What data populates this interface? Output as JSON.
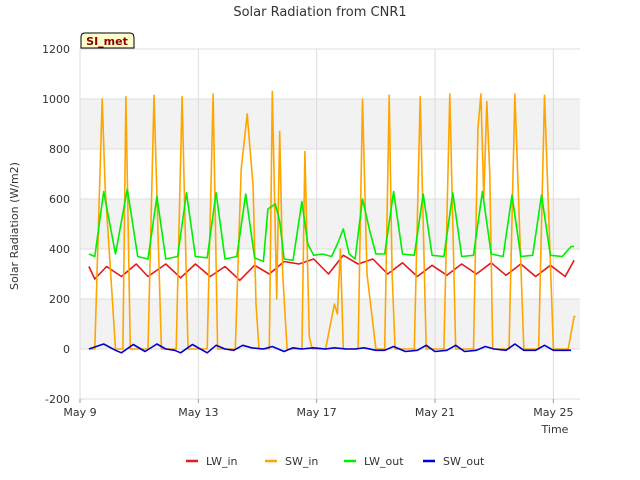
{
  "chart_data": {
    "type": "line",
    "title": "Solar Radiation from CNR1",
    "xlabel": "Time",
    "ylabel": "Solar Radiation (W/m2)",
    "badge": "SI_met",
    "x_range_days": [
      9.0,
      25.9
    ],
    "ylim": [
      -200,
      1200
    ],
    "y_ticks": [
      -200,
      0,
      200,
      400,
      600,
      800,
      1000,
      1200
    ],
    "x_ticks": [
      {
        "day": 9,
        "label": "May 9"
      },
      {
        "day": 13,
        "label": "May 13"
      },
      {
        "day": 17,
        "label": "May 17"
      },
      {
        "day": 21,
        "label": "May 21"
      },
      {
        "day": 25,
        "label": "May 25"
      }
    ],
    "grid": true,
    "legend_position": "bottom",
    "series": [
      {
        "name": "LW_in",
        "color": "#e31a1c",
        "x": [
          9.3,
          9.5,
          9.9,
          10.4,
          10.9,
          11.3,
          11.9,
          12.4,
          12.9,
          13.4,
          13.9,
          14.4,
          14.9,
          15.4,
          15.9,
          16.4,
          16.9,
          17.4,
          17.9,
          18.4,
          18.9,
          19.4,
          19.9,
          20.4,
          20.9,
          21.4,
          21.9,
          22.4,
          22.9,
          23.4,
          23.9,
          24.4,
          24.9,
          25.4,
          25.7
        ],
        "y": [
          330,
          280,
          330,
          290,
          340,
          290,
          340,
          285,
          340,
          290,
          330,
          275,
          335,
          300,
          350,
          340,
          360,
          300,
          375,
          340,
          360,
          300,
          345,
          290,
          335,
          295,
          340,
          300,
          345,
          295,
          340,
          290,
          335,
          290,
          355
        ]
      },
      {
        "name": "SW_in",
        "color": "#ffa500",
        "x": [
          9.3,
          9.5,
          9.75,
          9.85,
          10.2,
          10.45,
          10.55,
          10.7,
          10.95,
          11.3,
          11.5,
          11.75,
          11.9,
          12.25,
          12.45,
          12.65,
          12.9,
          13.3,
          13.5,
          13.65,
          13.9,
          14.25,
          14.45,
          14.65,
          14.85,
          14.95,
          15.05,
          15.2,
          15.4,
          15.5,
          15.65,
          15.75,
          15.85,
          16.0,
          16.3,
          16.5,
          16.6,
          16.75,
          16.85,
          17.3,
          17.6,
          17.7,
          17.8,
          17.9,
          18.1,
          18.4,
          18.55,
          18.7,
          19.0,
          19.3,
          19.45,
          19.55,
          19.65,
          20.0,
          20.3,
          20.5,
          20.7,
          21.0,
          21.3,
          21.5,
          21.7,
          22.0,
          22.3,
          22.45,
          22.55,
          22.65,
          22.75,
          22.85,
          22.95,
          23.3,
          23.5,
          23.7,
          24.0,
          24.3,
          24.5,
          24.7,
          25.0,
          25.3,
          25.5,
          25.7,
          25.75
        ],
        "y": [
          0,
          0,
          1000,
          650,
          0,
          0,
          1010,
          0,
          0,
          0,
          1015,
          0,
          0,
          0,
          1010,
          0,
          0,
          0,
          1020,
          0,
          0,
          0,
          720,
          940,
          650,
          180,
          0,
          0,
          0,
          1030,
          200,
          870,
          300,
          0,
          0,
          0,
          790,
          50,
          0,
          0,
          180,
          140,
          400,
          0,
          0,
          0,
          1000,
          300,
          0,
          0,
          1015,
          300,
          0,
          0,
          0,
          1010,
          0,
          0,
          0,
          1020,
          0,
          0,
          0,
          880,
          1020,
          600,
          990,
          700,
          0,
          0,
          0,
          1020,
          0,
          0,
          0,
          1015,
          0,
          0,
          0,
          130,
          130
        ]
      },
      {
        "name": "LW_out",
        "color": "#00ee00",
        "x": [
          9.3,
          9.5,
          9.8,
          10.2,
          10.6,
          10.95,
          11.3,
          11.6,
          11.9,
          12.3,
          12.6,
          12.9,
          13.3,
          13.6,
          13.9,
          14.3,
          14.6,
          14.9,
          15.2,
          15.35,
          15.6,
          15.75,
          15.9,
          16.2,
          16.5,
          16.7,
          16.9,
          17.2,
          17.5,
          17.7,
          17.9,
          18.1,
          18.3,
          18.55,
          18.8,
          19.0,
          19.3,
          19.6,
          19.9,
          20.3,
          20.6,
          20.9,
          21.3,
          21.6,
          21.9,
          22.3,
          22.6,
          22.9,
          23.3,
          23.6,
          23.9,
          24.3,
          24.6,
          24.9,
          25.3,
          25.6,
          25.7
        ],
        "y": [
          380,
          370,
          630,
          380,
          640,
          370,
          360,
          610,
          360,
          370,
          625,
          370,
          365,
          625,
          360,
          370,
          620,
          365,
          350,
          560,
          580,
          510,
          360,
          355,
          590,
          420,
          375,
          380,
          370,
          420,
          480,
          380,
          360,
          600,
          470,
          380,
          380,
          630,
          380,
          375,
          620,
          375,
          370,
          625,
          370,
          375,
          630,
          380,
          370,
          615,
          370,
          375,
          615,
          375,
          370,
          410,
          410
        ]
      },
      {
        "name": "SW_out",
        "color": "#0000cc",
        "x": [
          9.3,
          9.8,
          10.2,
          10.4,
          10.8,
          11.2,
          11.6,
          11.9,
          12.2,
          12.4,
          12.8,
          13.3,
          13.6,
          13.9,
          14.2,
          14.5,
          14.8,
          15.2,
          15.5,
          15.9,
          16.2,
          16.5,
          16.9,
          17.3,
          17.6,
          18.0,
          18.3,
          18.6,
          19.0,
          19.3,
          19.6,
          20.0,
          20.4,
          20.7,
          21.0,
          21.4,
          21.7,
          22.0,
          22.4,
          22.7,
          23.0,
          23.4,
          23.7,
          24.0,
          24.4,
          24.7,
          25.0,
          25.4,
          25.6
        ],
        "y": [
          0,
          20,
          -5,
          -15,
          18,
          -10,
          20,
          0,
          -5,
          -15,
          18,
          -15,
          15,
          0,
          -5,
          15,
          5,
          0,
          10,
          -10,
          5,
          0,
          5,
          0,
          5,
          0,
          0,
          5,
          -5,
          -5,
          10,
          -10,
          -5,
          15,
          -10,
          -5,
          15,
          -10,
          -5,
          10,
          0,
          -5,
          20,
          -5,
          -5,
          15,
          -5,
          -5,
          -5
        ]
      }
    ]
  }
}
